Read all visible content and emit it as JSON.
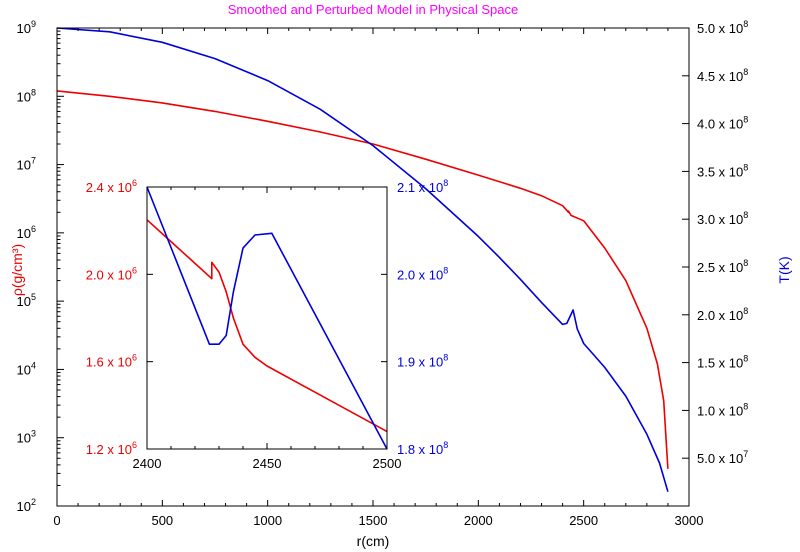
{
  "chart_data": {
    "type": "line",
    "title": "Smoothed and Perturbed Model in Physical Space",
    "title_color": "#ff00ff",
    "xlabel": "r(cm)",
    "ylabel_left": "ρ(g/cm³)",
    "ylabel_right": "T(K)",
    "xlim": [
      0,
      3000
    ],
    "ylim_left": [
      100,
      1000000000
    ],
    "ylim_right": [
      0,
      500000000
    ],
    "left_scale": "log",
    "right_scale": "linear",
    "grid": false,
    "x_ticks": [
      "0",
      "500",
      "1000",
      "1500",
      "2000",
      "2500",
      "3000"
    ],
    "y_left_ticks": [
      {
        "base": "10",
        "exp": "2"
      },
      {
        "base": "10",
        "exp": "3"
      },
      {
        "base": "10",
        "exp": "4"
      },
      {
        "base": "10",
        "exp": "5"
      },
      {
        "base": "10",
        "exp": "6"
      },
      {
        "base": "10",
        "exp": "7"
      },
      {
        "base": "10",
        "exp": "8"
      },
      {
        "base": "10",
        "exp": "9"
      }
    ],
    "y_right_ticks": [
      {
        "mant": "5.0 x 10",
        "exp": "7"
      },
      {
        "mant": "1.0 x 10",
        "exp": "8"
      },
      {
        "mant": "1.5 x 10",
        "exp": "8"
      },
      {
        "mant": "2.0 x 10",
        "exp": "8"
      },
      {
        "mant": "2.5 x 10",
        "exp": "8"
      },
      {
        "mant": "3.0 x 10",
        "exp": "8"
      },
      {
        "mant": "3.5 x 10",
        "exp": "8"
      },
      {
        "mant": "4.0 x 10",
        "exp": "8"
      },
      {
        "mant": "4.5 x 10",
        "exp": "8"
      },
      {
        "mant": "5.0 x 10",
        "exp": "8"
      }
    ],
    "series": [
      {
        "name": "",
        "color": "#ee0000",
        "axis": "left",
        "points": [
          [
            0,
            120000000
          ],
          [
            250,
            100000000
          ],
          [
            500,
            80000000
          ],
          [
            750,
            60000000
          ],
          [
            1000,
            43000000
          ],
          [
            1250,
            30000000
          ],
          [
            1500,
            20000000
          ],
          [
            1750,
            12000000
          ],
          [
            2000,
            7000000
          ],
          [
            2200,
            4500000
          ],
          [
            2300,
            3500000
          ],
          [
            2400,
            2500000
          ],
          [
            2428,
            2000000
          ],
          [
            2428,
            2080000
          ],
          [
            2440,
            1800000
          ],
          [
            2500,
            1500000
          ],
          [
            2600,
            600000
          ],
          [
            2700,
            200000
          ],
          [
            2800,
            40000
          ],
          [
            2850,
            12000
          ],
          [
            2880,
            3500
          ],
          [
            2900,
            350
          ]
        ]
      },
      {
        "name": "",
        "color": "#0000dd",
        "axis": "right",
        "points": [
          [
            0,
            500000000
          ],
          [
            250,
            496000000
          ],
          [
            500,
            485000000
          ],
          [
            750,
            468000000
          ],
          [
            1000,
            445000000
          ],
          [
            1250,
            415000000
          ],
          [
            1500,
            377000000
          ],
          [
            1750,
            332000000
          ],
          [
            2000,
            282000000
          ],
          [
            2100,
            260000000
          ],
          [
            2200,
            237000000
          ],
          [
            2300,
            213000000
          ],
          [
            2400,
            190000000
          ],
          [
            2420,
            191000000
          ],
          [
            2450,
            205000000
          ],
          [
            2470,
            185000000
          ],
          [
            2500,
            170000000
          ],
          [
            2540,
            160000000
          ],
          [
            2600,
            145000000
          ],
          [
            2700,
            115000000
          ],
          [
            2800,
            75000000
          ],
          [
            2860,
            45000000
          ],
          [
            2900,
            15000000
          ]
        ]
      }
    ],
    "inset": {
      "xlim": [
        2400,
        2500
      ],
      "ylim_left": [
        1200000,
        2400000
      ],
      "ylim_right": [
        180000000,
        210000000
      ],
      "x_ticks": [
        "2400",
        "2450",
        "2500"
      ],
      "y_left_ticks": [
        {
          "mant": "1.2 x 10",
          "exp": "6"
        },
        {
          "mant": "1.6 x 10",
          "exp": "6"
        },
        {
          "mant": "2.0 x 10",
          "exp": "6"
        },
        {
          "mant": "2.4 x 10",
          "exp": "6"
        }
      ],
      "y_right_ticks": [
        {
          "mant": "1.8 x 10",
          "exp": "8"
        },
        {
          "mant": "1.9 x 10",
          "exp": "8"
        },
        {
          "mant": "2.0 x 10",
          "exp": "8"
        },
        {
          "mant": "2.1 x 10",
          "exp": "8"
        }
      ],
      "series": [
        {
          "name": "",
          "color": "#ee0000",
          "axis": "left",
          "points": [
            [
              2400,
              2250000
            ],
            [
              2410,
              2150000
            ],
            [
              2420,
              2050000
            ],
            [
              2427,
              1980000
            ],
            [
              2427,
              2055000
            ],
            [
              2430,
              2010000
            ],
            [
              2433,
              1920000
            ],
            [
              2436,
              1800000
            ],
            [
              2440,
              1680000
            ],
            [
              2445,
              1620000
            ],
            [
              2450,
              1580000
            ],
            [
              2500,
              1280000
            ]
          ]
        },
        {
          "name": "",
          "color": "#0000dd",
          "axis": "right",
          "points": [
            [
              2400,
              210000000
            ],
            [
              2413,
              201000000
            ],
            [
              2426,
              192000000
            ],
            [
              2430,
              192000000
            ],
            [
              2433,
              193000000
            ],
            [
              2436,
              198000000
            ],
            [
              2440,
              203000000
            ],
            [
              2445,
              204500000
            ],
            [
              2452,
              204700000
            ],
            [
              2500,
              180000000
            ]
          ]
        }
      ]
    }
  }
}
